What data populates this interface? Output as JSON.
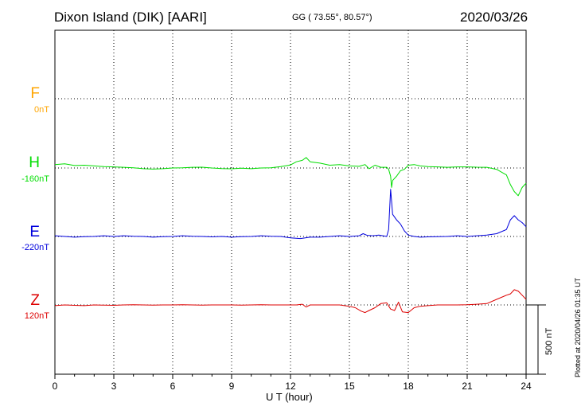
{
  "header": {
    "title": "Dixon Island (DIK)  [AARI]",
    "coords": "GG ( 73.55°,  80.57°)",
    "date": "2020/03/26"
  },
  "footer": {
    "plotted": "Plotted at 2020/04/26 01:35 UT"
  },
  "chart_data": {
    "type": "line",
    "xlabel": "U T (hour)",
    "xlim": [
      0,
      24
    ],
    "xticks": [
      "0",
      "3",
      "6",
      "9",
      "12",
      "15",
      "18",
      "21",
      "24"
    ],
    "scale_bar": {
      "value_nT": 500,
      "label": "500 nT"
    },
    "components": [
      {
        "name": "F",
        "base": "0nT",
        "color": "#ffa500"
      },
      {
        "name": "H",
        "base": "-160nT",
        "color": "#00dd00"
      },
      {
        "name": "E",
        "base": "-220nT",
        "color": "#0000dd"
      },
      {
        "name": "Z",
        "base": "120nT",
        "color": "#dd0000"
      }
    ],
    "series": [
      {
        "name": "H",
        "color": "#00dd00",
        "x": [
          0,
          0.5,
          1,
          1.5,
          2,
          2.5,
          3,
          3.5,
          4,
          4.5,
          5,
          5.5,
          6,
          6.5,
          7,
          7.5,
          8,
          8.5,
          9,
          9.5,
          10,
          10.5,
          11,
          11.5,
          12,
          12.3,
          12.6,
          12.8,
          13,
          13.5,
          14,
          14.5,
          15,
          15.5,
          15.8,
          16,
          16.3,
          16.6,
          16.9,
          17.0,
          17.1,
          17.15,
          17.2,
          17.4,
          17.6,
          17.8,
          18,
          18.3,
          18.6,
          19,
          19.5,
          20,
          20.5,
          21,
          21.5,
          22,
          22.5,
          23,
          23.2,
          23.4,
          23.6,
          23.8,
          24
        ],
        "y": [
          25,
          30,
          18,
          20,
          15,
          10,
          8,
          5,
          2,
          -5,
          -8,
          -5,
          0,
          2,
          5,
          6,
          0,
          -4,
          -6,
          -2,
          -5,
          0,
          2,
          10,
          22,
          45,
          55,
          75,
          45,
          35,
          20,
          25,
          15,
          12,
          25,
          -5,
          20,
          5,
          5,
          -10,
          -60,
          -140,
          -90,
          -60,
          -20,
          -10,
          20,
          25,
          15,
          10,
          8,
          5,
          8,
          8,
          6,
          5,
          -10,
          -50,
          -120,
          -170,
          -200,
          -140,
          -110
        ]
      },
      {
        "name": "E",
        "color": "#0000dd",
        "x": [
          0,
          0.5,
          1,
          1.5,
          2,
          2.5,
          3,
          3.5,
          4,
          4.5,
          5,
          5.5,
          6,
          6.5,
          7,
          7.5,
          8,
          8.5,
          9,
          9.5,
          10,
          10.5,
          11,
          11.5,
          12,
          12.5,
          13,
          13.5,
          14,
          14.5,
          15,
          15.5,
          15.7,
          15.9,
          16.2,
          16.5,
          16.9,
          17.0,
          17.1,
          17.2,
          17.4,
          17.6,
          17.8,
          18,
          18.3,
          18.6,
          19,
          19.5,
          20,
          20.5,
          21,
          21.5,
          22,
          22.5,
          23,
          23.2,
          23.4,
          23.6,
          23.8,
          24
        ],
        "y": [
          5,
          0,
          -5,
          -2,
          0,
          5,
          0,
          5,
          2,
          0,
          -5,
          -2,
          0,
          5,
          2,
          0,
          -3,
          0,
          -5,
          -2,
          0,
          5,
          2,
          0,
          -10,
          -15,
          -5,
          -5,
          0,
          5,
          0,
          5,
          20,
          8,
          5,
          10,
          0,
          50,
          340,
          160,
          120,
          90,
          40,
          10,
          0,
          -5,
          -3,
          -2,
          0,
          5,
          0,
          5,
          10,
          20,
          50,
          120,
          150,
          120,
          100,
          70
        ]
      },
      {
        "name": "Z",
        "color": "#dd0000",
        "x": [
          0,
          0.5,
          1,
          1.5,
          2,
          2.5,
          3,
          3.5,
          4,
          4.5,
          5,
          5.5,
          6,
          6.5,
          7,
          7.5,
          8,
          8.5,
          9,
          9.5,
          10,
          10.5,
          11,
          11.5,
          12,
          12.3,
          12.6,
          12.8,
          13,
          13.5,
          14,
          14.5,
          15,
          15.3,
          15.6,
          15.8,
          16.0,
          16.3,
          16.6,
          16.9,
          17.1,
          17.3,
          17.5,
          17.7,
          18.0,
          18.3,
          18.6,
          19,
          19.5,
          20,
          20.5,
          21,
          21.5,
          22,
          22.5,
          23,
          23.2,
          23.4,
          23.6,
          23.8,
          24
        ],
        "y": [
          -5,
          0,
          -3,
          -5,
          0,
          -2,
          -3,
          0,
          2,
          0,
          -2,
          0,
          0,
          2,
          0,
          -1,
          0,
          0,
          0,
          -2,
          0,
          2,
          0,
          0,
          0,
          0,
          5,
          -15,
          0,
          0,
          0,
          0,
          -10,
          -20,
          -45,
          -55,
          -40,
          -20,
          10,
          15,
          -30,
          -40,
          20,
          -50,
          -55,
          -20,
          -10,
          -5,
          0,
          0,
          0,
          2,
          5,
          10,
          40,
          70,
          80,
          110,
          100,
          70,
          40
        ]
      }
    ]
  }
}
